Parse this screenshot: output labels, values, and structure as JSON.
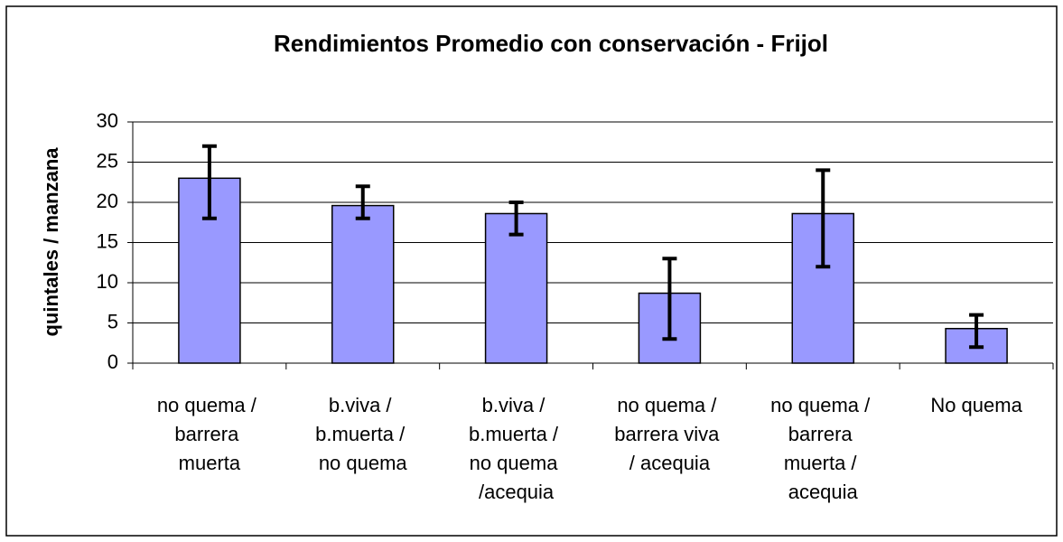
{
  "chart_data": {
    "type": "bar",
    "title": "Rendimientos Promedio con conservación - Frijol",
    "y_label": "quintales / manzana",
    "categories": [
      "no quema / barrera muerta",
      "b.viva / b.muerta / no quema",
      "b.viva / b.muerta / no quema /acequia",
      "no quema / barrera viva / acequia",
      "no quema / barrera muerta / acequia",
      "No quema"
    ],
    "values": [
      23,
      19.6,
      18.6,
      8.7,
      18.6,
      4.3
    ],
    "error_low": [
      18,
      18,
      16,
      3,
      12,
      2
    ],
    "error_high": [
      27,
      22,
      20,
      13,
      24,
      6
    ],
    "color": "#9999ff",
    "ylim": [
      0,
      30
    ],
    "yticks": [
      0,
      5,
      10,
      15,
      20,
      25,
      30
    ],
    "grid": true
  }
}
